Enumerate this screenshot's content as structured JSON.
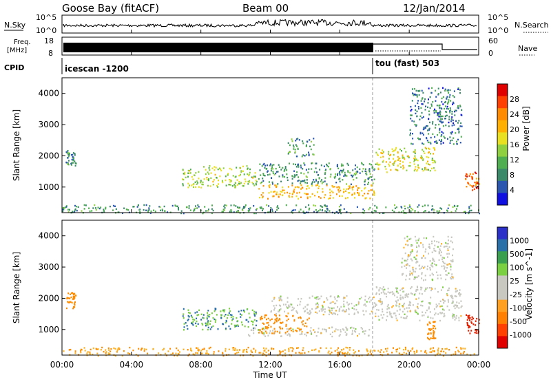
{
  "header": {
    "station": "Goose Bay (fitACF)",
    "beam": "Beam 00",
    "date": "12/Jan/2014"
  },
  "noise_panel": {
    "left_label": "N.Sky",
    "right_label": "N.Search",
    "y_top_tick": "10^5",
    "y_bottom_tick": "10^0"
  },
  "freq_panel": {
    "left_label_line1": "Freq.",
    "left_label_line2": "[MHz]",
    "left_ticks": [
      "18",
      "8"
    ],
    "right_label": "Nave",
    "right_ticks": [
      "60",
      "0"
    ]
  },
  "cpid_panel": {
    "label": "CPID",
    "modes": [
      {
        "name": "icescan -1200",
        "start_hour": 0
      },
      {
        "name": "tou (fast) 503",
        "start_hour": 18
      }
    ]
  },
  "power_panel": {
    "ylabel": "Slant Range [km]",
    "colorbar_label": "Power [dB]",
    "colorbar_ticks": [
      "28",
      "24",
      "20",
      "16",
      "12",
      "8",
      "4"
    ],
    "colorbar_colors": [
      "#e00000",
      "#ff4000",
      "#ff8c00",
      "#ffb000",
      "#e8e020",
      "#8fd040",
      "#4fae4f",
      "#3a8a6a",
      "#2a56b0",
      "#1010e0"
    ]
  },
  "velocity_panel": {
    "ylabel": "Slant Range [km]",
    "colorbar_label": "Velocity [m s^-1]",
    "colorbar_ticks": [
      "1000",
      "500",
      "100",
      "25",
      "-25",
      "-100",
      "-500",
      "-1000"
    ],
    "colorbar_colors": [
      "#2a30c8",
      "#2a70a8",
      "#3aa050",
      "#7ad040",
      "#c8c8c0",
      "#c8c8c0",
      "#ffa020",
      "#ff8000",
      "#ff4000",
      "#e00000"
    ]
  },
  "xaxis": {
    "label": "Time UT",
    "ticks": [
      "00:00",
      "04:00",
      "08:00",
      "12:00",
      "16:00",
      "20:00",
      "00:00"
    ]
  },
  "chart_data": [
    {
      "type": "heatmap",
      "title": "Power",
      "xlabel": "Time UT",
      "ylabel": "Slant Range [km]",
      "xlim": [
        0,
        24
      ],
      "ylim": [
        180,
        4500
      ],
      "yticks": [
        1000,
        2000,
        3000,
        4000
      ],
      "colorbar": {
        "label": "Power [dB]",
        "range": [
          0,
          30
        ],
        "ticks": [
          4,
          8,
          12,
          16,
          20,
          24,
          28
        ]
      },
      "regions": [
        {
          "t": [
            0,
            24
          ],
          "r": [
            180,
            450
          ],
          "value": 8
        },
        {
          "t": [
            0.2,
            0.8
          ],
          "r": [
            1700,
            2200
          ],
          "value": 8
        },
        {
          "t": [
            6.9,
            11.2
          ],
          "r": [
            1000,
            1700
          ],
          "value": 14
        },
        {
          "t": [
            11.3,
            18.0
          ],
          "r": [
            650,
            1100
          ],
          "value": 20
        },
        {
          "t": [
            11.3,
            18.0
          ],
          "r": [
            1100,
            1800
          ],
          "value": 8
        },
        {
          "t": [
            13,
            14.5
          ],
          "r": [
            2000,
            2600
          ],
          "value": 8
        },
        {
          "t": [
            18.0,
            21.5
          ],
          "r": [
            1500,
            2300
          ],
          "value": 16
        },
        {
          "t": [
            20.0,
            23.0
          ],
          "r": [
            2400,
            4200
          ],
          "value": 6
        },
        {
          "t": [
            23.2,
            24.0
          ],
          "r": [
            900,
            1500
          ],
          "value": 26
        }
      ]
    },
    {
      "type": "heatmap",
      "title": "Velocity",
      "xlabel": "Time UT",
      "ylabel": "Slant Range [km]",
      "xlim": [
        0,
        24
      ],
      "ylim": [
        180,
        4500
      ],
      "yticks": [
        1000,
        2000,
        3000,
        4000
      ],
      "colorbar": {
        "label": "Velocity [m s^-1]",
        "range": [
          -1000,
          1000
        ],
        "ticks": [
          1000,
          500,
          100,
          25,
          -25,
          -100,
          -500,
          -1000
        ]
      },
      "regions": [
        {
          "t": [
            0,
            24
          ],
          "r": [
            180,
            450
          ],
          "value": -100
        },
        {
          "t": [
            0.2,
            0.8
          ],
          "r": [
            1700,
            2200
          ],
          "value": -300
        },
        {
          "t": [
            6.9,
            11.2
          ],
          "r": [
            1000,
            1700
          ],
          "value": 100
        },
        {
          "t": [
            10.5,
            18.0
          ],
          "r": [
            800,
            1100
          ],
          "value": 0
        },
        {
          "t": [
            11.3,
            14.2
          ],
          "r": [
            900,
            1500
          ],
          "value": -300
        },
        {
          "t": [
            12.0,
            18.0
          ],
          "r": [
            1500,
            2100
          ],
          "value": 0
        },
        {
          "t": [
            18.0,
            23.0
          ],
          "r": [
            1300,
            2400
          ],
          "value": 0
        },
        {
          "t": [
            19.5,
            22.5
          ],
          "r": [
            2600,
            4000
          ],
          "value": 0
        },
        {
          "t": [
            21.0,
            21.5
          ],
          "r": [
            700,
            1300
          ],
          "value": -400
        },
        {
          "t": [
            23.2,
            24.0
          ],
          "r": [
            900,
            1500
          ],
          "value": -700
        }
      ]
    }
  ]
}
